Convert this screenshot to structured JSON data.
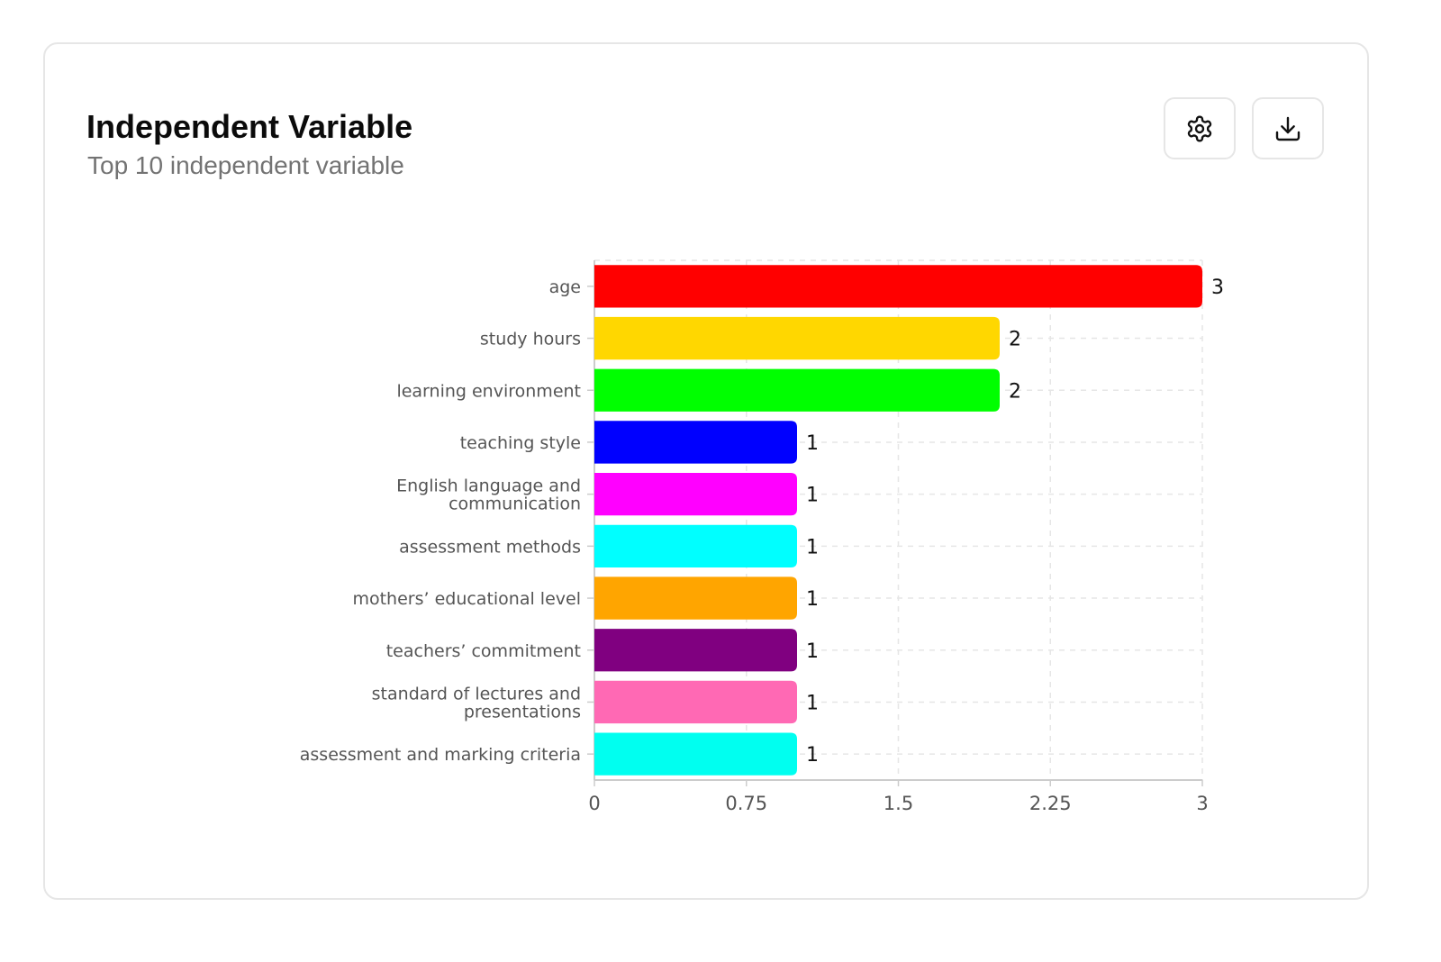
{
  "header": {
    "title": "Independent Variable",
    "subtitle": "Top 10 independent variable"
  },
  "toolbar": {
    "settings_icon": "gear-icon",
    "download_icon": "download-icon"
  },
  "chart_data": {
    "type": "bar",
    "orientation": "horizontal",
    "title": "Independent Variable",
    "subtitle": "Top 10 independent variable",
    "categories": [
      "age",
      "study hours",
      "learning environment",
      "teaching style",
      "English language and communication",
      "assessment methods",
      "mothers’ educational level",
      "teachers’ commitment",
      "standard of lectures and presentations",
      "assessment and marking criteria"
    ],
    "category_lines": [
      [
        "age"
      ],
      [
        "study hours"
      ],
      [
        "learning environment"
      ],
      [
        "teaching style"
      ],
      [
        "English language and",
        "communication"
      ],
      [
        "assessment methods"
      ],
      [
        "mothers’ educational level"
      ],
      [
        "teachers’ commitment"
      ],
      [
        "standard of lectures and",
        "presentations"
      ],
      [
        "assessment and marking criteria"
      ]
    ],
    "values": [
      3,
      2,
      2,
      1,
      1,
      1,
      1,
      1,
      1,
      1
    ],
    "colors": [
      "#ff0000",
      "#ffd700",
      "#00ff00",
      "#0000ff",
      "#ff00ff",
      "#00ffff",
      "#ffa500",
      "#800080",
      "#ff69b4",
      "#00fff0"
    ],
    "xlim": [
      0,
      3
    ],
    "xticks": [
      "0",
      "0.75",
      "1.5",
      "2.25",
      "3"
    ],
    "xtick_values": [
      0,
      0.75,
      1.5,
      2.25,
      3
    ],
    "xlabel": "",
    "ylabel": "",
    "grid": true,
    "legend": "none"
  }
}
